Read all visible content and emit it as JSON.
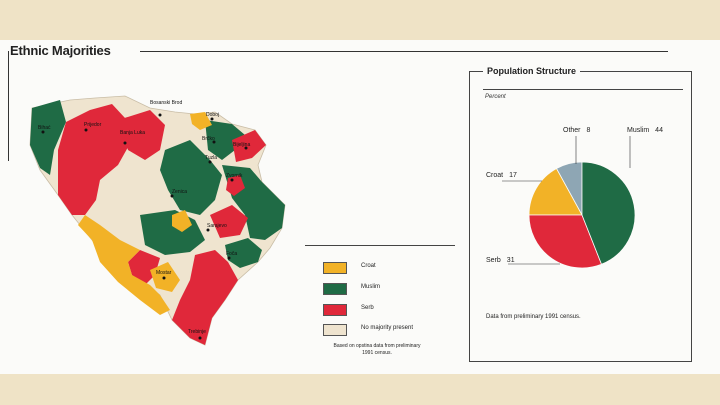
{
  "map_title": "Ethnic Majorities",
  "population": {
    "title": "Population Structure",
    "subtitle": "Percent",
    "slices": [
      {
        "name": "Muslim",
        "value": 44
      },
      {
        "name": "Serb",
        "value": 31
      },
      {
        "name": "Croat",
        "value": 17
      },
      {
        "name": "Other",
        "value": 8
      }
    ],
    "footnote": "Data from preliminary 1991 census."
  },
  "legend": {
    "items": [
      {
        "label": "Croat",
        "color": "#f2b227"
      },
      {
        "label": "Muslim",
        "color": "#1f6b45"
      },
      {
        "label": "Serb",
        "color": "#e0283a"
      },
      {
        "label": "No majority present",
        "color": "#efe4cf"
      }
    ],
    "note": "Based on opstina data from preliminary 1991 census."
  },
  "cities": [
    "Bosanski Brod",
    "Bihać",
    "Prijedor",
    "Banja Luka",
    "Brčko",
    "Bijeljina",
    "Tuzla",
    "Zvornik",
    "Zenica",
    "Sarajevo",
    "Foča",
    "Mostar",
    "Trebinje",
    "Doboj"
  ],
  "colors": {
    "muslim": "#1f6b45",
    "serb": "#e0283a",
    "croat": "#f2b227",
    "other": "#8ea6b4",
    "none": "#efe4cf"
  }
}
